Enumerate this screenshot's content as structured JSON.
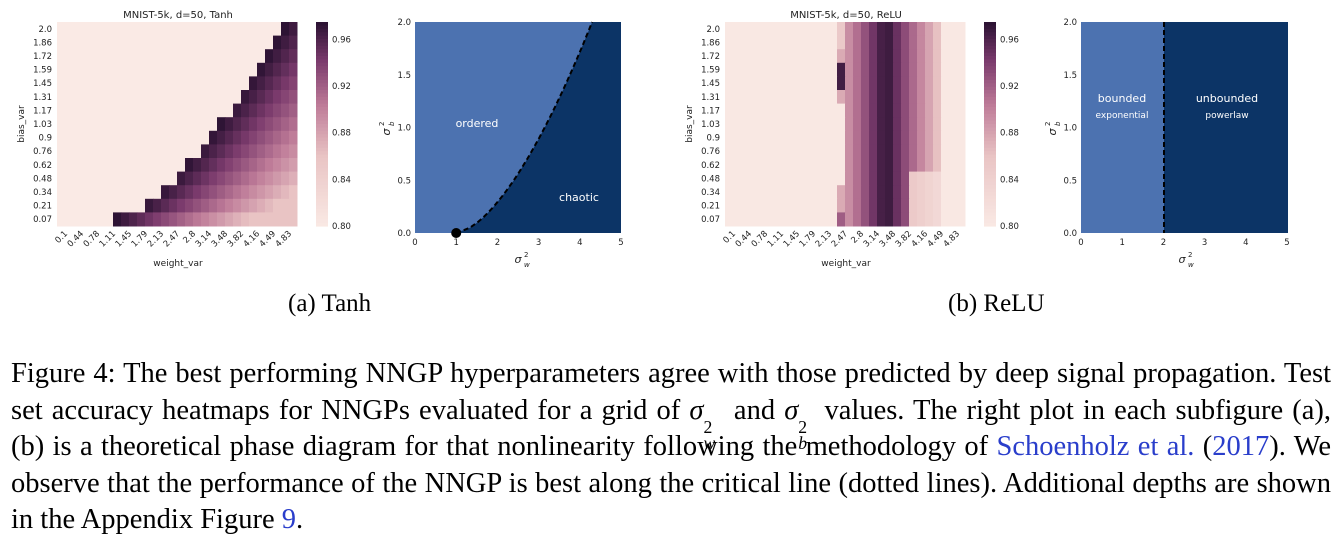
{
  "panels": [
    {
      "id": "tanh",
      "heatmap": {
        "title": "MNIST-5k, d=50, Tanh",
        "xlabel": "weight_var",
        "ylabel": "bias_var",
        "xticks": [
          "0.1",
          "0.44",
          "0.78",
          "1.11",
          "1.45",
          "1.79",
          "2.13",
          "2.47",
          "2.8",
          "3.14",
          "3.48",
          "3.82",
          "4.16",
          "4.49",
          "4.83"
        ],
        "yticks": [
          "2.0",
          "1.86",
          "1.72",
          "1.59",
          "1.45",
          "1.31",
          "1.17",
          "1.03",
          "0.9",
          "0.76",
          "0.62",
          "0.48",
          "0.34",
          "0.21",
          "0.07"
        ],
        "colorbar_ticks": [
          "0.96",
          "0.92",
          "0.88",
          "0.84",
          "0.80"
        ],
        "colorbar_range": [
          0.8,
          0.975
        ]
      },
      "phase": {
        "xticks": [
          "0",
          "1",
          "2",
          "3",
          "4",
          "5"
        ],
        "yticks": [
          "0.0",
          "0.5",
          "1.0",
          "1.5",
          "2.0"
        ],
        "xlim": [
          0,
          5
        ],
        "ylim": [
          0,
          2
        ],
        "xlabel": "σ²w",
        "ylabel": "σ²b",
        "region_left_label": "ordered",
        "region_right_label": "chaotic",
        "colors": {
          "left": "#4c72b0",
          "right": "#0c3466"
        }
      },
      "subcaption": "(a) Tanh"
    },
    {
      "id": "relu",
      "heatmap": {
        "title": "MNIST-5k, d=50, ReLU",
        "xlabel": "weight_var",
        "ylabel": "bias_var",
        "xticks": [
          "0.1",
          "0.44",
          "0.78",
          "1.11",
          "1.45",
          "1.79",
          "2.13",
          "2.47",
          "2.8",
          "3.14",
          "3.48",
          "3.82",
          "4.16",
          "4.49",
          "4.83"
        ],
        "yticks": [
          "2.0",
          "1.86",
          "1.72",
          "1.59",
          "1.45",
          "1.31",
          "1.17",
          "1.03",
          "0.9",
          "0.76",
          "0.62",
          "0.48",
          "0.34",
          "0.21",
          "0.07"
        ],
        "colorbar_ticks": [
          "0.96",
          "0.92",
          "0.88",
          "0.84",
          "0.80"
        ],
        "colorbar_range": [
          0.8,
          0.975
        ]
      },
      "phase": {
        "xticks": [
          "0",
          "1",
          "2",
          "3",
          "4",
          "5"
        ],
        "yticks": [
          "0.0",
          "0.5",
          "1.0",
          "1.5",
          "2.0"
        ],
        "xlim": [
          0,
          5
        ],
        "ylim": [
          0,
          2
        ],
        "xlabel": "σ²w",
        "ylabel": "σ²b",
        "region_left_label": "bounded",
        "region_left_sublabel": "exponential",
        "region_right_label": "unbounded",
        "region_right_sublabel": "powerlaw",
        "colors": {
          "left": "#4c72b0",
          "right": "#0c3466"
        }
      },
      "subcaption": "(b) ReLU"
    }
  ],
  "caption": {
    "p1": "Figure 4: The best performing NNGP hyperparameters agree with those predicted by deep signal propagation. Test set accuracy heatmaps for NNGPs evaluated for a grid of ",
    "p2": " and ",
    "p3": " values. The right plot in each subfigure (a), (b) is a theoretical phase diagram for that nonlinearity following the methodology of ",
    "cite_author": "Schoenholz et al.",
    "cite_open": " (",
    "cite_year": "2017",
    "p4": "). We observe that the performance of the NNGP is best along the critical line (dotted lines). Additional depths are shown in the Appendix Figure ",
    "fig_ref": "9",
    "p5": "."
  }
}
